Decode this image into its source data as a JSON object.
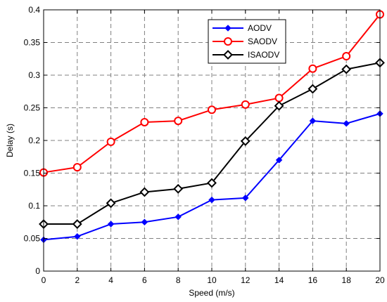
{
  "chart_data": {
    "type": "line",
    "xlabel": "Speed (m/s)",
    "ylabel": "Delay  (s)",
    "x": [
      0,
      2,
      4,
      6,
      8,
      10,
      12,
      14,
      16,
      18,
      20
    ],
    "xlim": [
      0,
      20
    ],
    "ylim": [
      0,
      0.4
    ],
    "x_ticks": [
      "0",
      "2",
      "4",
      "6",
      "8",
      "10",
      "12",
      "14",
      "16",
      "18",
      "20"
    ],
    "y_ticks": [
      "0",
      "0.05",
      "0.1",
      "0.15",
      "0.2",
      "0.25",
      "0.3",
      "0.35",
      "0.4"
    ],
    "grid": true,
    "legend_position": "top-right-inside",
    "series": [
      {
        "name": "AODV",
        "color": "#0000ff",
        "marker": "filled-diamond",
        "values": [
          0.048,
          0.053,
          0.072,
          0.075,
          0.083,
          0.109,
          0.112,
          0.17,
          0.23,
          0.226,
          0.241
        ]
      },
      {
        "name": "SAODV",
        "color": "#ff0000",
        "marker": "open-circle",
        "values": [
          0.151,
          0.159,
          0.198,
          0.228,
          0.23,
          0.247,
          0.255,
          0.265,
          0.31,
          0.329,
          0.393
        ]
      },
      {
        "name": "ISAODV",
        "color": "#000000",
        "marker": "open-diamond",
        "values": [
          0.072,
          0.072,
          0.104,
          0.121,
          0.126,
          0.135,
          0.199,
          0.253,
          0.279,
          0.309,
          0.319
        ]
      }
    ]
  }
}
